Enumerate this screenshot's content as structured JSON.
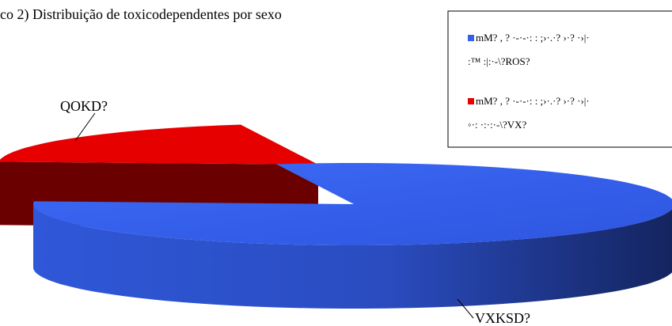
{
  "chart_data": {
    "type": "pie3d",
    "title": "co 2) Distribuição de toxicodependentes por sexo",
    "categories": [
      "VXKSD?",
      "QOKD?"
    ],
    "values": [
      80,
      20
    ],
    "colors": [
      "#3560e8",
      "#e60000"
    ],
    "legend_entries": [
      [
        "mM? , ? ·-·-·: : ;›·.·? ›·? ·›|·",
        ":™ :|:·-\\?ROS?"
      ],
      [
        "mM? , ? ·-·-·: : ;›·.·? ›·? ·›|·",
        "◦·: ·:·:·-\\?VX?"
      ]
    ],
    "legend": "upper right"
  }
}
